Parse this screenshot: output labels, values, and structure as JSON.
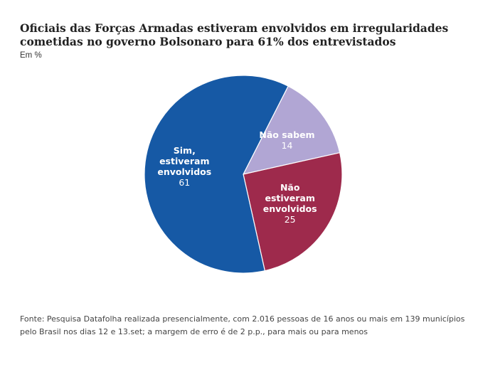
{
  "title": "Oficiais das Forças Armadas estiveram envolvidos em irregularidades cometidas no governo Bolsonaro para 61% dos entrevistados",
  "subtitle": "Em %",
  "source": "Fonte: Pesquisa Datafolha realizada presencialmente, com 2.016 pessoas de 16 anos ou mais em 139 municípios pelo Brasil nos dias 12 e 13.set; a margem de erro é de 2 p.p., para mais ou para menos",
  "chart_data": {
    "type": "pie",
    "title": "Oficiais das Forças Armadas estiveram envolvidos em irregularidades cometidas no governo Bolsonaro para 61% dos entrevistados",
    "unit": "Em %",
    "slices": [
      {
        "label": [
          "Não sabem"
        ],
        "value": 14,
        "color": "#b1a6d4"
      },
      {
        "label": [
          "Não",
          "estiveram",
          "envolvidos"
        ],
        "value": 25,
        "color": "#9e2a4c"
      },
      {
        "label": [
          "Sim,",
          "estiveram",
          "envolvidos"
        ],
        "value": 61,
        "color": "#1659a5"
      }
    ],
    "start_angle_deg": 27,
    "legend": "none",
    "data_labels": "inside"
  }
}
